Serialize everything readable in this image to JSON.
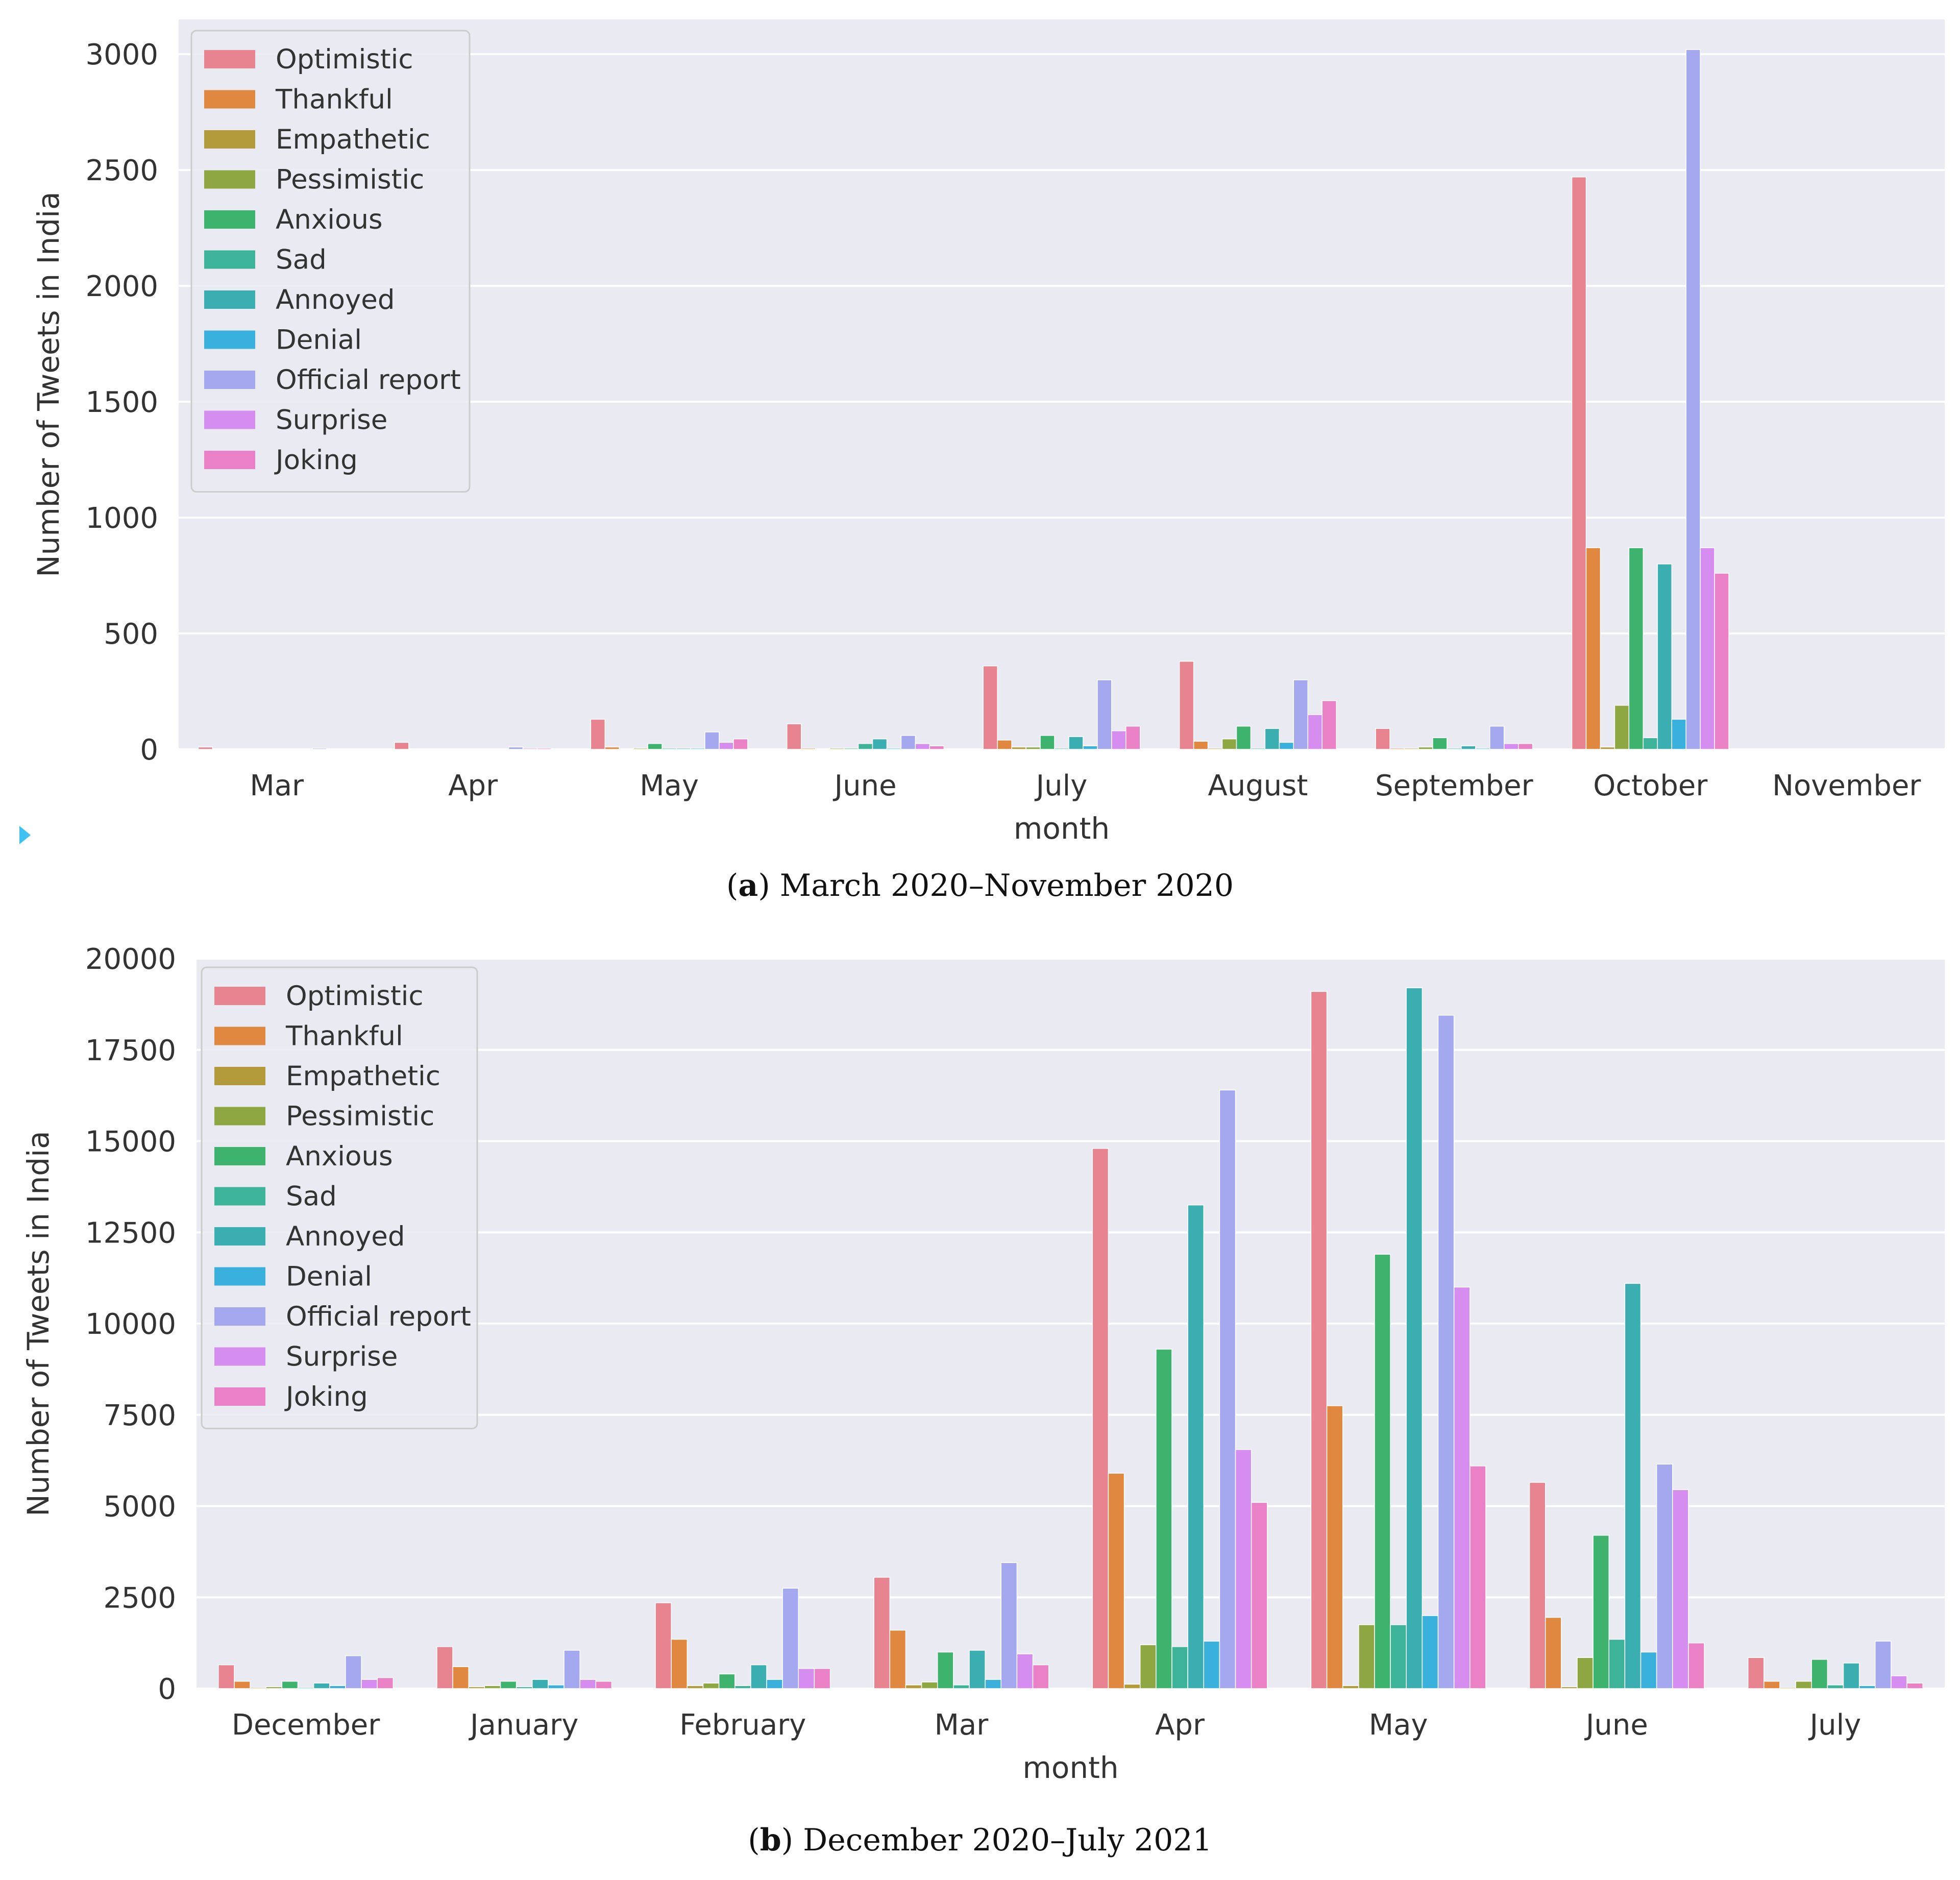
{
  "colors": [
    "#e8848f",
    "#e0883f",
    "#b39b3c",
    "#8fa742",
    "#3db36e",
    "#3db49a",
    "#3aaeb0",
    "#3ab1dc",
    "#a4a8ef",
    "#d58ef0",
    "#ea80c6"
  ],
  "chart_data": [
    {
      "type": "bar",
      "title": "",
      "caption_letter": "a",
      "caption_text": "March 2020–November 2020",
      "xlabel": "month",
      "ylabel": "Number of Tweets in India",
      "ylim": [
        0,
        3150
      ],
      "yticks": [
        0,
        500,
        1000,
        1500,
        2000,
        2500,
        3000
      ],
      "grid": true,
      "legend_position": "top-left",
      "categories": [
        "Mar",
        "Apr",
        "May",
        "June",
        "July",
        "August",
        "September",
        "October",
        "November"
      ],
      "series": [
        {
          "name": "Optimistic",
          "values": [
            10,
            30,
            130,
            110,
            360,
            380,
            90,
            2470,
            0
          ]
        },
        {
          "name": "Thankful",
          "values": [
            0,
            0,
            10,
            5,
            40,
            35,
            5,
            870,
            0
          ]
        },
        {
          "name": "Empathetic",
          "values": [
            0,
            0,
            0,
            0,
            10,
            5,
            5,
            10,
            0
          ]
        },
        {
          "name": "Pessimistic",
          "values": [
            0,
            0,
            5,
            5,
            10,
            45,
            10,
            190,
            0
          ]
        },
        {
          "name": "Anxious",
          "values": [
            0,
            0,
            25,
            5,
            60,
            100,
            50,
            870,
            0
          ]
        },
        {
          "name": "Sad",
          "values": [
            0,
            0,
            5,
            25,
            5,
            5,
            5,
            50,
            0
          ]
        },
        {
          "name": "Annoyed",
          "values": [
            0,
            0,
            5,
            45,
            55,
            90,
            15,
            800,
            0
          ]
        },
        {
          "name": "Denial",
          "values": [
            0,
            0,
            5,
            5,
            15,
            30,
            5,
            130,
            0
          ]
        },
        {
          "name": "Official report",
          "values": [
            5,
            10,
            75,
            60,
            300,
            300,
            100,
            3020,
            0
          ]
        },
        {
          "name": "Surprise",
          "values": [
            0,
            5,
            30,
            25,
            80,
            150,
            25,
            870,
            0
          ]
        },
        {
          "name": "Joking",
          "values": [
            0,
            5,
            45,
            15,
            100,
            210,
            25,
            760,
            0
          ]
        }
      ]
    },
    {
      "type": "bar",
      "title": "",
      "caption_letter": "b",
      "caption_text": "December 2020–July 2021",
      "xlabel": "month",
      "ylabel": "Number of Tweets in India",
      "ylim": [
        0,
        20000
      ],
      "yticks": [
        0,
        2500,
        5000,
        7500,
        10000,
        12500,
        15000,
        17500,
        20000
      ],
      "grid": true,
      "legend_position": "top-left",
      "categories": [
        "December",
        "January",
        "February",
        "Mar",
        "Apr",
        "May",
        "June",
        "July"
      ],
      "series": [
        {
          "name": "Optimistic",
          "values": [
            650,
            1150,
            2350,
            3050,
            14800,
            19100,
            5650,
            850
          ]
        },
        {
          "name": "Thankful",
          "values": [
            200,
            600,
            1350,
            1600,
            5900,
            7750,
            1950,
            200
          ]
        },
        {
          "name": "Empathetic",
          "values": [
            30,
            50,
            80,
            100,
            120,
            80,
            50,
            30
          ]
        },
        {
          "name": "Pessimistic",
          "values": [
            50,
            80,
            150,
            180,
            1200,
            1750,
            850,
            200
          ]
        },
        {
          "name": "Anxious",
          "values": [
            200,
            200,
            400,
            1000,
            9300,
            11900,
            4200,
            800
          ]
        },
        {
          "name": "Sad",
          "values": [
            30,
            50,
            80,
            100,
            1150,
            1750,
            1350,
            100
          ]
        },
        {
          "name": "Annoyed",
          "values": [
            150,
            250,
            650,
            1050,
            13250,
            19200,
            11100,
            700
          ]
        },
        {
          "name": "Denial",
          "values": [
            80,
            100,
            250,
            250,
            1300,
            2000,
            1000,
            80
          ]
        },
        {
          "name": "Official report",
          "values": [
            900,
            1050,
            2750,
            3450,
            16400,
            18450,
            6150,
            1300
          ]
        },
        {
          "name": "Surprise",
          "values": [
            250,
            250,
            550,
            950,
            6550,
            11000,
            5450,
            350
          ]
        },
        {
          "name": "Joking",
          "values": [
            300,
            200,
            550,
            650,
            5100,
            6100,
            1250,
            150
          ]
        }
      ]
    }
  ]
}
